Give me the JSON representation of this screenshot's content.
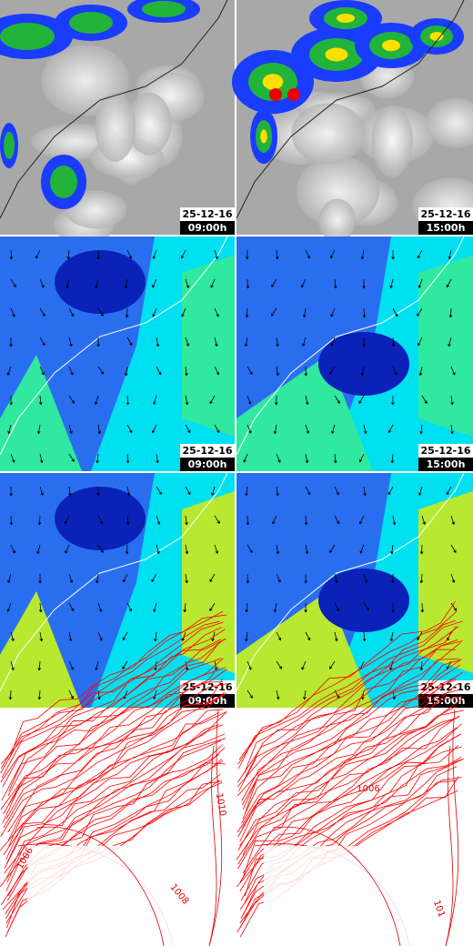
{
  "rows": [
    {
      "panels": [
        {
          "date": "25-12-16",
          "time": "09:00h"
        },
        {
          "date": "25-12-16",
          "time": "15:00h"
        }
      ]
    },
    {
      "panels": [
        {
          "date": "25-12-16",
          "time": "09:00h"
        },
        {
          "date": "25-12-16",
          "time": "15:00h"
        }
      ]
    },
    {
      "panels": [
        {
          "date": "25-12-16",
          "time": "09:00h"
        },
        {
          "date": "25-12-16",
          "time": "15:00h"
        }
      ]
    }
  ],
  "pressure_panels": [
    {
      "labels": [
        "1006",
        "1010",
        "1008"
      ]
    },
    {
      "labels": [
        "1006",
        "101"
      ]
    }
  ]
}
